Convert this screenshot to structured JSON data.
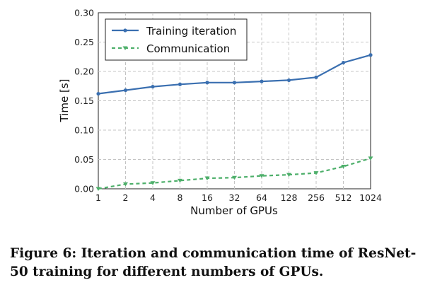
{
  "chart_data": {
    "type": "line",
    "categories": [
      "1",
      "2",
      "4",
      "8",
      "16",
      "32",
      "64",
      "128",
      "256",
      "512",
      "1024"
    ],
    "series": [
      {
        "name": "Training iteration",
        "color": "#3a6fb0",
        "style": "solid",
        "marker": "circle",
        "values": [
          0.162,
          0.168,
          0.174,
          0.178,
          0.181,
          0.181,
          0.183,
          0.185,
          0.19,
          0.215,
          0.228
        ]
      },
      {
        "name": "Communication",
        "color": "#4daf6a",
        "style": "dashed",
        "marker": "triangle-down",
        "values": [
          0.0,
          0.008,
          0.01,
          0.014,
          0.018,
          0.019,
          0.022,
          0.024,
          0.027,
          0.038,
          0.052
        ]
      }
    ],
    "xlabel": "Number of GPUs",
    "ylabel": "Time [s]",
    "ylim": [
      0,
      0.3
    ],
    "yticks": [
      "0.00",
      "0.05",
      "0.10",
      "0.15",
      "0.20",
      "0.25",
      "0.30"
    ],
    "grid": true,
    "legend_position": "top-left"
  },
  "caption": "Figure 6: Iteration and communication time of ResNet-50 training for different numbers of GPUs."
}
